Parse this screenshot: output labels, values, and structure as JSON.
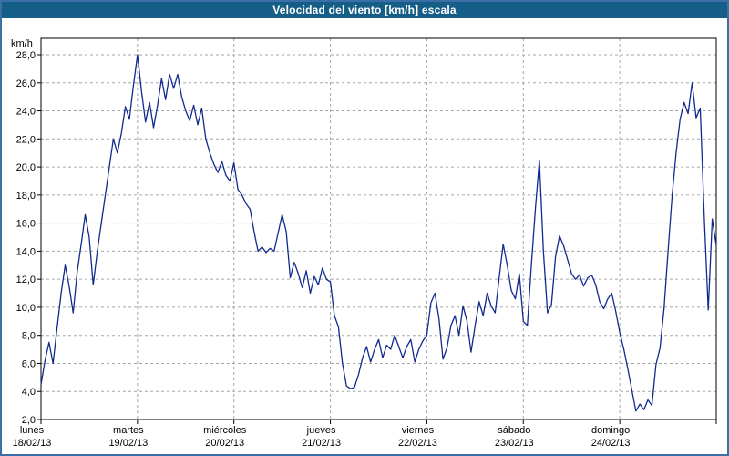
{
  "window": {
    "title": "Velocidad del viento [km/h] escala"
  },
  "colors": {
    "titlebar_bg": "#155e87",
    "titlebar_text": "#ffffff",
    "frame_border": "#3c6ea8",
    "plot_border": "#000000",
    "grid": "#a6a6a6",
    "line": "#112a8e",
    "background": "#ffffff",
    "text": "#000000"
  },
  "chart_data": {
    "type": "line",
    "title": "Velocidad del viento [km/h] escala",
    "xlabel": "",
    "ylabel": "km/h",
    "ylim": [
      2,
      28
    ],
    "ytick_step": 2,
    "ytick_labels": [
      "2,0",
      "4,0",
      "6,0",
      "8,0",
      "10,0",
      "12,0",
      "14,0",
      "16,0",
      "18,0",
      "20,0",
      "22,0",
      "24,0",
      "26,0",
      "28,0"
    ],
    "grid": true,
    "legend_position": "none",
    "x_days": [
      {
        "name": "lunes",
        "date": "18/02/13"
      },
      {
        "name": "martes",
        "date": "19/02/13"
      },
      {
        "name": "miércoles",
        "date": "20/02/13"
      },
      {
        "name": "jueves",
        "date": "21/02/13"
      },
      {
        "name": "viernes",
        "date": "22/02/13"
      },
      {
        "name": "sábado",
        "date": "23/02/13"
      },
      {
        "name": "domingo",
        "date": "24/02/13"
      }
    ],
    "series": [
      {
        "name": "Velocidad del viento",
        "unit": "km/h",
        "points_per_day": 24,
        "values": [
          4.5,
          6.2,
          7.5,
          6.0,
          8.5,
          11.0,
          13.0,
          11.5,
          9.6,
          12.5,
          14.5,
          16.6,
          15.0,
          11.6,
          14.0,
          16.0,
          18.0,
          20.0,
          22.0,
          21.0,
          22.4,
          24.3,
          23.4,
          25.8,
          28.0,
          25.4,
          23.2,
          24.6,
          22.8,
          24.4,
          26.3,
          24.8,
          26.6,
          25.6,
          26.6,
          25.0,
          24.0,
          23.3,
          24.4,
          23.0,
          24.2,
          22.0,
          21.0,
          20.2,
          19.6,
          20.4,
          19.4,
          19.0,
          20.3,
          18.4,
          18.0,
          17.4,
          17.0,
          15.4,
          14.0,
          14.3,
          13.9,
          14.2,
          14.0,
          15.3,
          16.6,
          15.4,
          12.1,
          13.2,
          12.4,
          11.4,
          12.6,
          11.0,
          12.2,
          11.6,
          12.8,
          12.0,
          11.8,
          9.4,
          8.6,
          6.0,
          4.4,
          4.2,
          4.3,
          5.2,
          6.4,
          7.2,
          6.1,
          7.0,
          7.7,
          6.4,
          7.3,
          7.0,
          8.0,
          7.2,
          6.4,
          7.2,
          7.7,
          6.1,
          7.0,
          7.6,
          8.0,
          10.3,
          11.0,
          9.2,
          6.3,
          7.1,
          8.7,
          9.4,
          8.0,
          10.1,
          9.0,
          6.8,
          8.7,
          10.4,
          9.4,
          11.0,
          10.1,
          9.6,
          12.1,
          14.5,
          13.0,
          11.2,
          10.6,
          12.4,
          9.0,
          8.7,
          13.0,
          17.0,
          20.5,
          14.0,
          9.6,
          10.2,
          13.6,
          15.1,
          14.4,
          13.4,
          12.4,
          12.0,
          12.3,
          11.5,
          12.1,
          12.3,
          11.6,
          10.4,
          9.9,
          10.6,
          11.0,
          9.7,
          8.2,
          7.0,
          5.6,
          4.1,
          2.6,
          3.1,
          2.7,
          3.4,
          3.0,
          5.9,
          7.1,
          9.9,
          14.0,
          17.9,
          21.0,
          23.4,
          24.6,
          23.8,
          26.0,
          23.5,
          24.2,
          16.5,
          9.8,
          16.3,
          14.4
        ]
      }
    ]
  }
}
